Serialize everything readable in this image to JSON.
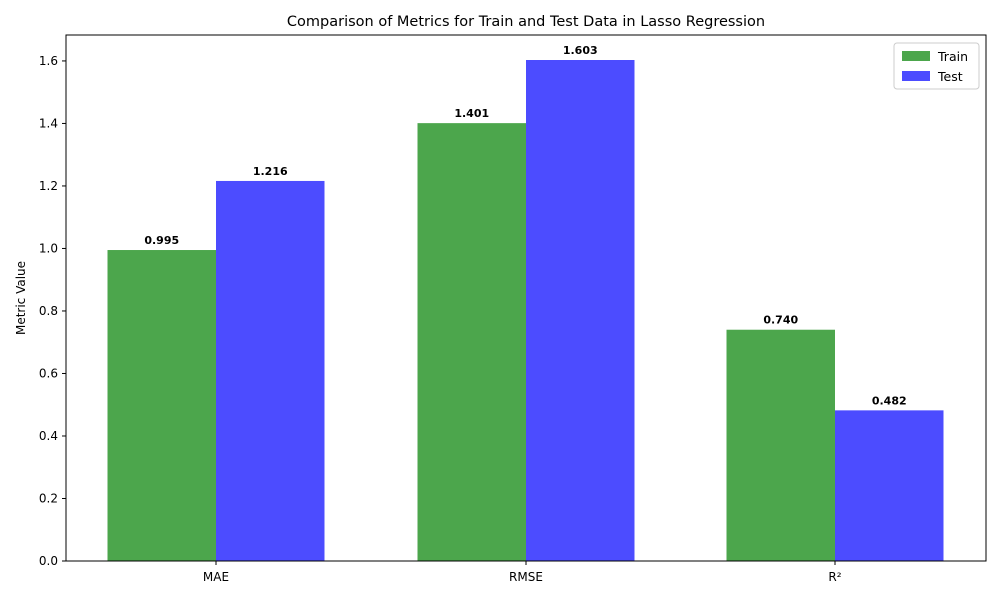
{
  "chart_data": {
    "type": "bar",
    "title": "Comparison of Metrics for Train and Test Data in Lasso Regression",
    "xlabel": "",
    "ylabel": "Metric Value",
    "categories": [
      "MAE",
      "RMSE",
      "R²"
    ],
    "series": [
      {
        "name": "Train",
        "values": [
          0.995,
          1.401,
          0.74
        ],
        "labels": [
          "0.995",
          "1.401",
          "0.740"
        ],
        "color": "#4ca64c"
      },
      {
        "name": "Test",
        "values": [
          1.216,
          1.603,
          0.482
        ],
        "labels": [
          "1.216",
          "1.603",
          "0.482"
        ],
        "color": "#4c4cff"
      }
    ],
    "ylim": [
      0,
      1.683
    ],
    "yticks": [
      0.0,
      0.2,
      0.4,
      0.6,
      0.8,
      1.0,
      1.2,
      1.4,
      1.6
    ],
    "ytick_labels": [
      "0.0",
      "0.2",
      "0.4",
      "0.6",
      "0.8",
      "1.0",
      "1.2",
      "1.4",
      "1.6"
    ],
    "grid": false,
    "legend": "top-right"
  }
}
